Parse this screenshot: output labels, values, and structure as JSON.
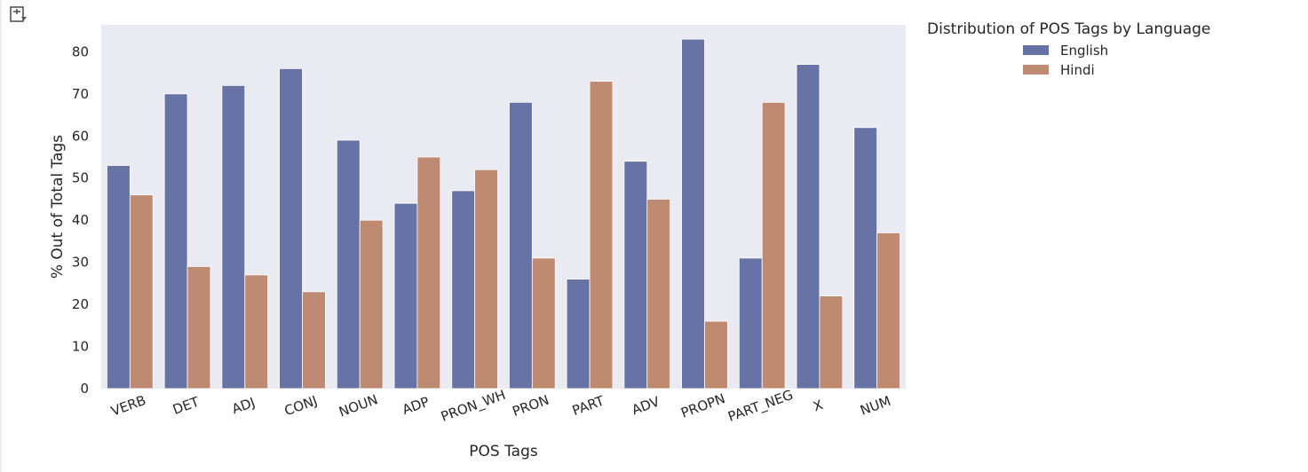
{
  "cell": {
    "icon": "output-toggle-icon"
  },
  "chart_data": {
    "type": "bar",
    "title": "",
    "xlabel": "POS Tags",
    "ylabel": "% Out of Total Tags",
    "categories": [
      "VERB",
      "DET",
      "ADJ",
      "CONJ",
      "NOUN",
      "ADP",
      "PRON_WH",
      "PRON",
      "PART",
      "ADV",
      "PROPN",
      "PART_NEG",
      "X",
      "NUM"
    ],
    "series": [
      {
        "name": "English",
        "color": "#6673a4",
        "values": [
          53,
          70,
          72,
          76,
          59,
          44,
          47,
          68,
          26,
          54,
          83,
          31,
          77,
          62
        ]
      },
      {
        "name": "Hindi",
        "color": "#be8a72",
        "values": [
          46,
          29,
          27,
          23,
          40,
          55,
          52,
          31,
          73,
          45,
          16,
          68,
          22,
          37
        ]
      }
    ],
    "ylim": [
      0,
      86.4
    ],
    "yticks": [
      0,
      10,
      20,
      30,
      40,
      50,
      60,
      70,
      80
    ],
    "grid": false,
    "plot_background": "#eaeaf2",
    "legend": {
      "title": "Distribution of POS Tags by Language",
      "placement": "outside-top-right"
    }
  }
}
